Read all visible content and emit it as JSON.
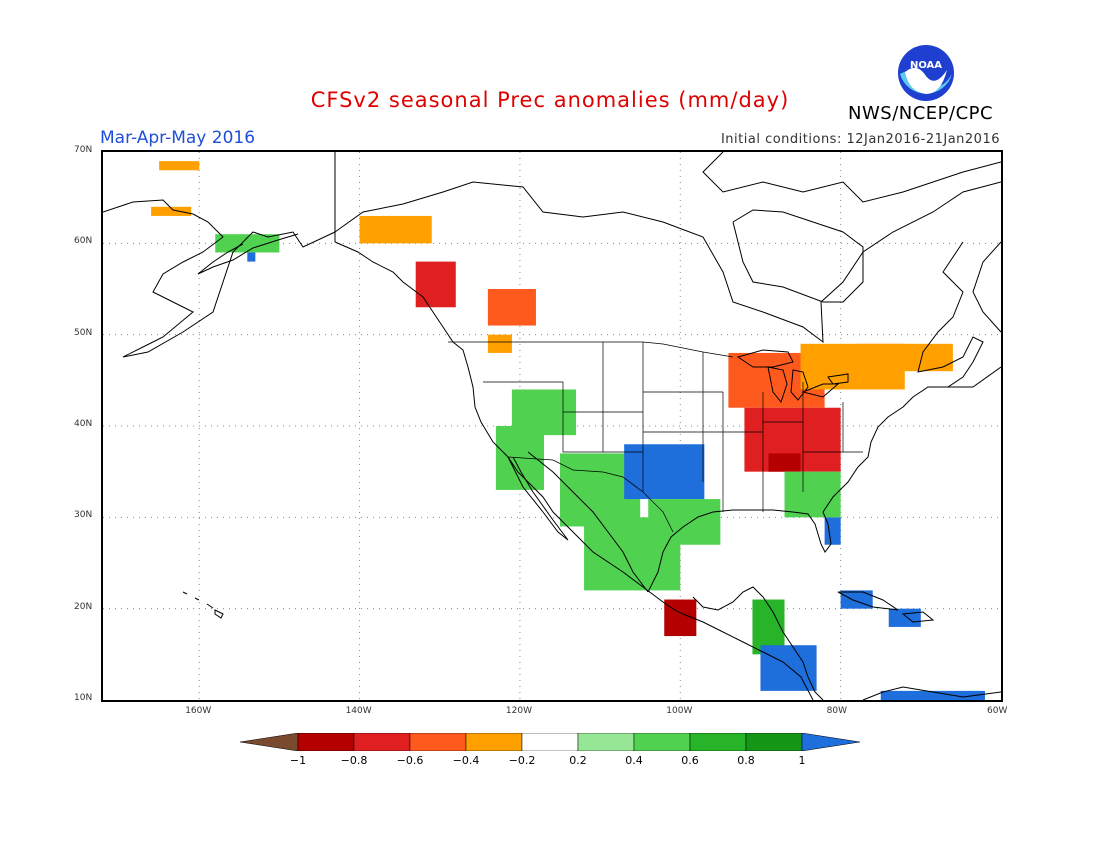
{
  "title": "CFSv2 seasonal Prec anomalies (mm/day)",
  "period": "Mar-Apr-May 2016",
  "initial_conditions": "Initial conditions: 12Jan2016-21Jan2016",
  "agency": "NWS/NCEP/CPC",
  "logo_text": "NOAA",
  "lat_labels": [
    "70N",
    "60N",
    "50N",
    "40N",
    "30N",
    "20N",
    "10N"
  ],
  "lon_labels": [
    "160W",
    "140W",
    "120W",
    "100W",
    "80W",
    "60W"
  ],
  "legend": {
    "labels": [
      "−1",
      "−0.8",
      "−0.6",
      "−0.4",
      "−0.2",
      "0.2",
      "0.4",
      "0.6",
      "0.8",
      "1"
    ],
    "colors": [
      "#7a4a2e",
      "#b40000",
      "#e02020",
      "#ff5a1e",
      "#ffa000",
      "#ffffff",
      "#96e696",
      "#50d250",
      "#28b428",
      "#169616",
      "#1e6edc"
    ]
  },
  "chart_data": {
    "type": "heatmap",
    "title": "CFSv2 seasonal Prec anomalies (mm/day)",
    "lon_range": [
      -172,
      -60
    ],
    "lat_range": [
      10,
      70
    ],
    "bins": [
      -1,
      -0.8,
      -0.6,
      -0.4,
      -0.2,
      0.2,
      0.4,
      0.6,
      0.8,
      1
    ],
    "regions": [
      {
        "name": "Alaska north coast",
        "lon": [
          -165,
          -160
        ],
        "lat": [
          68,
          69
        ],
        "value": -0.3
      },
      {
        "name": "Alaska west",
        "lon": [
          -166,
          -161
        ],
        "lat": [
          63,
          64
        ],
        "value": -0.3
      },
      {
        "name": "Alaska south coast",
        "lon": [
          -158,
          -150
        ],
        "lat": [
          59,
          61
        ],
        "value": 0.5
      },
      {
        "name": "Kodiak",
        "lon": [
          -154,
          -153
        ],
        "lat": [
          58,
          59
        ],
        "value": 1.0
      },
      {
        "name": "Yukon",
        "lon": [
          -140,
          -131
        ],
        "lat": [
          60,
          63
        ],
        "value": -0.3
      },
      {
        "name": "BC coast",
        "lon": [
          -133,
          -128
        ],
        "lat": [
          53,
          58
        ],
        "value": -0.8
      },
      {
        "name": "BC interior",
        "lon": [
          -124,
          -118
        ],
        "lat": [
          51,
          55
        ],
        "value": -0.6
      },
      {
        "name": "Pacific NW",
        "lon": [
          -124,
          -121
        ],
        "lat": [
          48,
          50
        ],
        "value": -0.3
      },
      {
        "name": "Great Basin",
        "lon": [
          -121,
          -113
        ],
        "lat": [
          39,
          44
        ],
        "value": 0.4
      },
      {
        "name": "California",
        "lon": [
          -123,
          -117
        ],
        "lat": [
          33,
          40
        ],
        "value": 0.4
      },
      {
        "name": "Southwest",
        "lon": [
          -115,
          -105
        ],
        "lat": [
          29,
          37
        ],
        "value": 0.5
      },
      {
        "name": "Southern Plains",
        "lon": [
          -107,
          -97
        ],
        "lat": [
          32,
          38
        ],
        "value": 1.0
      },
      {
        "name": "Texas",
        "lon": [
          -104,
          -95
        ],
        "lat": [
          27,
          32
        ],
        "value": 0.5
      },
      {
        "name": "Mexico west",
        "lon": [
          -112,
          -100
        ],
        "lat": [
          22,
          30
        ],
        "value": 0.4
      },
      {
        "name": "Upper Midwest",
        "lon": [
          -94,
          -82
        ],
        "lat": [
          42,
          48
        ],
        "value": -0.5
      },
      {
        "name": "Ohio Valley",
        "lon": [
          -92,
          -80
        ],
        "lat": [
          35,
          42
        ],
        "value": -0.8
      },
      {
        "name": "Tennessee Valley",
        "lon": [
          -89,
          -85
        ],
        "lat": [
          35,
          37
        ],
        "value": -1.0
      },
      {
        "name": "Great Lakes / Ontario",
        "lon": [
          -85,
          -72
        ],
        "lat": [
          44,
          49
        ],
        "value": -0.3
      },
      {
        "name": "Quebec south",
        "lon": [
          -78,
          -66
        ],
        "lat": [
          46,
          49
        ],
        "value": -0.3
      },
      {
        "name": "Florida",
        "lon": [
          -82,
          -80
        ],
        "lat": [
          27,
          30
        ],
        "value": 1.0
      },
      {
        "name": "Southeast",
        "lon": [
          -87,
          -80
        ],
        "lat": [
          30,
          35
        ],
        "value": 0.4
      },
      {
        "name": "Southern Mexico",
        "lon": [
          -102,
          -98
        ],
        "lat": [
          17,
          21
        ],
        "value": -1.0
      },
      {
        "name": "Yucatan",
        "lon": [
          -91,
          -87
        ],
        "lat": [
          15,
          21
        ],
        "value": 0.6
      },
      {
        "name": "Central America",
        "lon": [
          -90,
          -83
        ],
        "lat": [
          11,
          16
        ],
        "value": 1.0
      },
      {
        "name": "Cuba",
        "lon": [
          -80,
          -76
        ],
        "lat": [
          20,
          22
        ],
        "value": 1.0
      },
      {
        "name": "Hispaniola",
        "lon": [
          -74,
          -70
        ],
        "lat": [
          18,
          20
        ],
        "value": 1.0
      },
      {
        "name": "Northern South America",
        "lon": [
          -75,
          -62
        ],
        "lat": [
          10,
          11
        ],
        "value": 1.0
      }
    ]
  }
}
